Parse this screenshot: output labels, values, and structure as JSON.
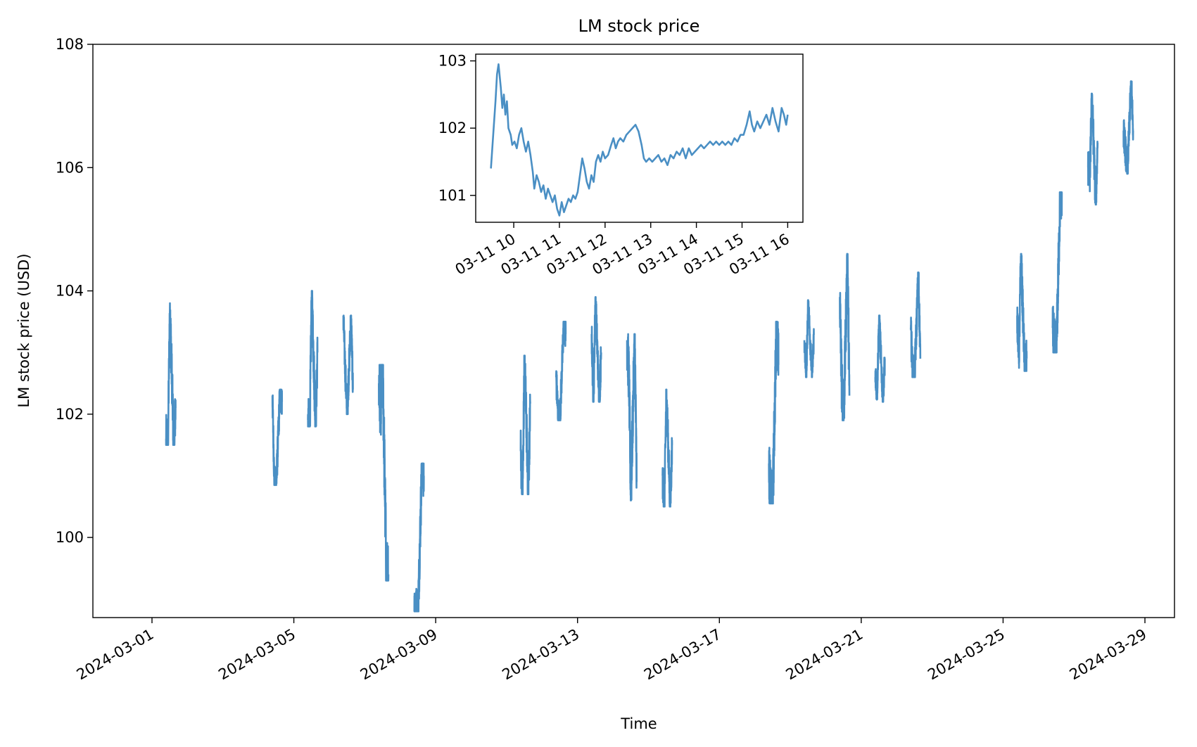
{
  "chart_data": [
    {
      "type": "line",
      "title": "LM stock price",
      "xlabel": "Time",
      "ylabel": "LM stock price (USD)",
      "xlim": [
        "2024-02-28T08:00",
        "2024-03-29T20:00"
      ],
      "ylim": [
        98.7,
        108
      ],
      "yticks": [
        100,
        102,
        104,
        106,
        108
      ],
      "xticks": [
        "2024-03-01",
        "2024-03-05",
        "2024-03-09",
        "2024-03-13",
        "2024-03-17",
        "2024-03-21",
        "2024-03-25",
        "2024-03-29"
      ],
      "grid": false,
      "line_color": "#4a8fc4",
      "trading_sessions": [
        {
          "date": "2024-03-01",
          "start": 101.6,
          "open_low": 101.5,
          "high": 103.8,
          "low": 101.5,
          "close": 102.1
        },
        {
          "date": "2024-03-04",
          "start": 102.3,
          "open_low": 100.9,
          "high": 102.4,
          "low": 100.85,
          "close": 102.2
        },
        {
          "date": "2024-03-05",
          "start": 101.9,
          "open_low": 101.8,
          "high": 104.0,
          "low": 101.8,
          "close": 103.0
        },
        {
          "date": "2024-03-06",
          "start": 103.6,
          "open_low": 102.7,
          "high": 103.6,
          "low": 102.0,
          "close": 102.4
        },
        {
          "date": "2024-03-07",
          "start": 102.5,
          "open_low": 102.2,
          "high": 102.8,
          "low": 99.3,
          "close": 99.4
        },
        {
          "date": "2024-03-08",
          "start": 98.8,
          "open_low": 98.8,
          "high": 101.2,
          "low": 98.8,
          "close": 101.0
        },
        {
          "date": "2024-03-11",
          "start": 101.4,
          "open_low": 100.7,
          "high": 102.95,
          "low": 100.7,
          "close": 102.2
        },
        {
          "date": "2024-03-12",
          "start": 102.6,
          "open_low": 102.0,
          "high": 103.5,
          "low": 101.9,
          "close": 103.3
        },
        {
          "date": "2024-03-13",
          "start": 103.3,
          "open_low": 102.2,
          "high": 103.9,
          "low": 102.2,
          "close": 103.0
        },
        {
          "date": "2024-03-14",
          "start": 103.2,
          "open_low": 102.6,
          "high": 103.3,
          "low": 100.6,
          "close": 100.9
        },
        {
          "date": "2024-03-15",
          "start": 101.0,
          "open_low": 100.5,
          "high": 102.4,
          "low": 100.5,
          "close": 101.5
        },
        {
          "date": "2024-03-18",
          "start": 101.2,
          "open_low": 100.6,
          "high": 103.5,
          "low": 100.55,
          "close": 102.8
        },
        {
          "date": "2024-03-19",
          "start": 103.2,
          "open_low": 102.6,
          "high": 103.85,
          "low": 102.6,
          "close": 103.3
        },
        {
          "date": "2024-03-20",
          "start": 103.9,
          "open_low": 102.5,
          "high": 104.6,
          "low": 101.9,
          "close": 102.3
        },
        {
          "date": "2024-03-21",
          "start": 102.6,
          "open_low": 102.4,
          "high": 103.6,
          "low": 102.2,
          "close": 102.9
        },
        {
          "date": "2024-03-22",
          "start": 103.4,
          "open_low": 102.7,
          "high": 104.3,
          "low": 102.6,
          "close": 102.9
        },
        {
          "date": "2024-03-25",
          "start": 103.6,
          "open_low": 103.0,
          "high": 104.6,
          "low": 102.7,
          "close": 102.9
        },
        {
          "date": "2024-03-26",
          "start": 103.4,
          "open_low": 103.1,
          "high": 105.6,
          "low": 103.0,
          "close": 105.6
        },
        {
          "date": "2024-03-27",
          "start": 106.0,
          "open_low": 105.9,
          "high": 107.2,
          "low": 105.4,
          "close": 106.4
        },
        {
          "date": "2024-03-28",
          "start": 106.6,
          "open_low": 106.3,
          "high": 107.4,
          "low": 105.9,
          "close": 106.6
        }
      ]
    },
    {
      "type": "line",
      "title": "",
      "inset": true,
      "xlim": [
        "2024-03-11T09:10",
        "2024-03-11T16:20"
      ],
      "ylim": [
        100.6,
        103.1
      ],
      "yticks": [
        101,
        102,
        103
      ],
      "xticks": [
        "03-11 10",
        "03-11 11",
        "03-11 12",
        "03-11 13",
        "03-11 14",
        "03-11 15",
        "03-11 16"
      ],
      "grid": false,
      "line_color": "#4a8fc4",
      "points": [
        [
          "09:30",
          101.4
        ],
        [
          "09:33",
          101.9
        ],
        [
          "09:36",
          102.4
        ],
        [
          "09:38",
          102.8
        ],
        [
          "09:40",
          102.95
        ],
        [
          "09:43",
          102.6
        ],
        [
          "09:45",
          102.3
        ],
        [
          "09:47",
          102.5
        ],
        [
          "09:49",
          102.2
        ],
        [
          "09:51",
          102.4
        ],
        [
          "09:53",
          102.0
        ],
        [
          "09:56",
          101.9
        ],
        [
          "09:58",
          101.75
        ],
        [
          "10:01",
          101.8
        ],
        [
          "10:04",
          101.7
        ],
        [
          "10:07",
          101.9
        ],
        [
          "10:10",
          102.0
        ],
        [
          "10:13",
          101.8
        ],
        [
          "10:16",
          101.65
        ],
        [
          "10:19",
          101.8
        ],
        [
          "10:22",
          101.6
        ],
        [
          "10:25",
          101.35
        ],
        [
          "10:27",
          101.1
        ],
        [
          "10:30",
          101.3
        ],
        [
          "10:33",
          101.2
        ],
        [
          "10:36",
          101.05
        ],
        [
          "10:39",
          101.15
        ],
        [
          "10:42",
          100.95
        ],
        [
          "10:45",
          101.1
        ],
        [
          "10:48",
          101.0
        ],
        [
          "10:51",
          100.9
        ],
        [
          "10:54",
          101.0
        ],
        [
          "10:57",
          100.8
        ],
        [
          "11:00",
          100.7
        ],
        [
          "11:03",
          100.9
        ],
        [
          "11:06",
          100.75
        ],
        [
          "11:09",
          100.85
        ],
        [
          "11:12",
          100.95
        ],
        [
          "11:15",
          100.9
        ],
        [
          "11:18",
          101.0
        ],
        [
          "11:21",
          100.95
        ],
        [
          "11:24",
          101.05
        ],
        [
          "11:27",
          101.3
        ],
        [
          "11:30",
          101.55
        ],
        [
          "11:33",
          101.4
        ],
        [
          "11:36",
          101.2
        ],
        [
          "11:39",
          101.1
        ],
        [
          "11:42",
          101.3
        ],
        [
          "11:45",
          101.2
        ],
        [
          "11:48",
          101.5
        ],
        [
          "11:51",
          101.6
        ],
        [
          "11:54",
          101.5
        ],
        [
          "11:57",
          101.65
        ],
        [
          "12:00",
          101.55
        ],
        [
          "12:04",
          101.6
        ],
        [
          "12:08",
          101.75
        ],
        [
          "12:11",
          101.85
        ],
        [
          "12:14",
          101.7
        ],
        [
          "12:17",
          101.8
        ],
        [
          "12:20",
          101.85
        ],
        [
          "12:24",
          101.8
        ],
        [
          "12:28",
          101.9
        ],
        [
          "12:32",
          101.95
        ],
        [
          "12:36",
          102.0
        ],
        [
          "12:40",
          102.05
        ],
        [
          "12:44",
          101.95
        ],
        [
          "12:48",
          101.75
        ],
        [
          "12:51",
          101.55
        ],
        [
          "12:54",
          101.5
        ],
        [
          "12:58",
          101.55
        ],
        [
          "13:02",
          101.5
        ],
        [
          "13:06",
          101.55
        ],
        [
          "13:10",
          101.6
        ],
        [
          "13:14",
          101.5
        ],
        [
          "13:18",
          101.55
        ],
        [
          "13:22",
          101.45
        ],
        [
          "13:26",
          101.6
        ],
        [
          "13:30",
          101.55
        ],
        [
          "13:34",
          101.65
        ],
        [
          "13:38",
          101.6
        ],
        [
          "13:42",
          101.7
        ],
        [
          "13:46",
          101.55
        ],
        [
          "13:50",
          101.7
        ],
        [
          "13:54",
          101.6
        ],
        [
          "13:58",
          101.65
        ],
        [
          "14:02",
          101.7
        ],
        [
          "14:06",
          101.75
        ],
        [
          "14:10",
          101.7
        ],
        [
          "14:14",
          101.75
        ],
        [
          "14:18",
          101.8
        ],
        [
          "14:22",
          101.75
        ],
        [
          "14:26",
          101.8
        ],
        [
          "14:30",
          101.75
        ],
        [
          "14:34",
          101.8
        ],
        [
          "14:38",
          101.75
        ],
        [
          "14:42",
          101.8
        ],
        [
          "14:46",
          101.75
        ],
        [
          "14:50",
          101.85
        ],
        [
          "14:54",
          101.8
        ],
        [
          "14:58",
          101.9
        ],
        [
          "15:02",
          101.9
        ],
        [
          "15:06",
          102.05
        ],
        [
          "15:10",
          102.25
        ],
        [
          "15:13",
          102.05
        ],
        [
          "15:16",
          101.95
        ],
        [
          "15:20",
          102.1
        ],
        [
          "15:24",
          102.0
        ],
        [
          "15:28",
          102.1
        ],
        [
          "15:32",
          102.2
        ],
        [
          "15:36",
          102.05
        ],
        [
          "15:40",
          102.3
        ],
        [
          "15:44",
          102.1
        ],
        [
          "15:48",
          101.95
        ],
        [
          "15:52",
          102.3
        ],
        [
          "15:55",
          102.2
        ],
        [
          "15:58",
          102.05
        ],
        [
          "16:00",
          102.2
        ]
      ]
    }
  ]
}
